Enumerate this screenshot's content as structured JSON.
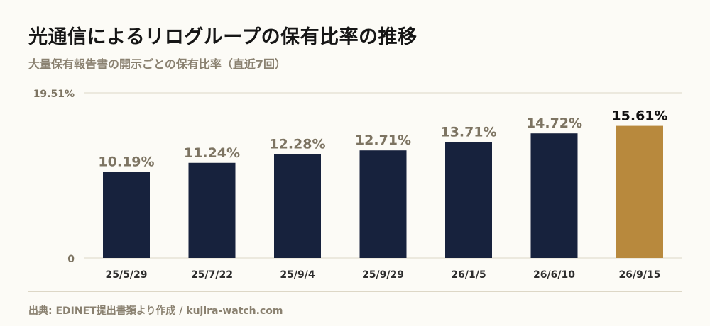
{
  "header": {
    "title": "光通信によるリログループの保有比率の推移",
    "subtitle": "大量保有報告書の開示ごとの保有比率（直近7回）"
  },
  "footer": {
    "source": "出典: EDINET提出書類より作成 / kujira-watch.com"
  },
  "colors": {
    "bar": "#17223d",
    "highlight": "#b8893d",
    "label": "#7d7462",
    "highlight_label": "#111111",
    "grid": "#ddd7c6"
  },
  "chart_data": {
    "type": "bar",
    "categories": [
      "25/5/29",
      "25/7/22",
      "25/9/4",
      "25/9/29",
      "26/1/5",
      "26/6/10",
      "26/9/15"
    ],
    "values": [
      10.19,
      11.24,
      12.28,
      12.71,
      13.71,
      14.72,
      15.61
    ],
    "value_labels": [
      "10.19%",
      "11.24%",
      "12.28%",
      "12.71%",
      "13.71%",
      "14.72%",
      "15.61%"
    ],
    "highlight_index": 6,
    "ylim": [
      0,
      19.51
    ],
    "y_tick_labels": [
      "0",
      "19.51%"
    ],
    "grid": true
  }
}
